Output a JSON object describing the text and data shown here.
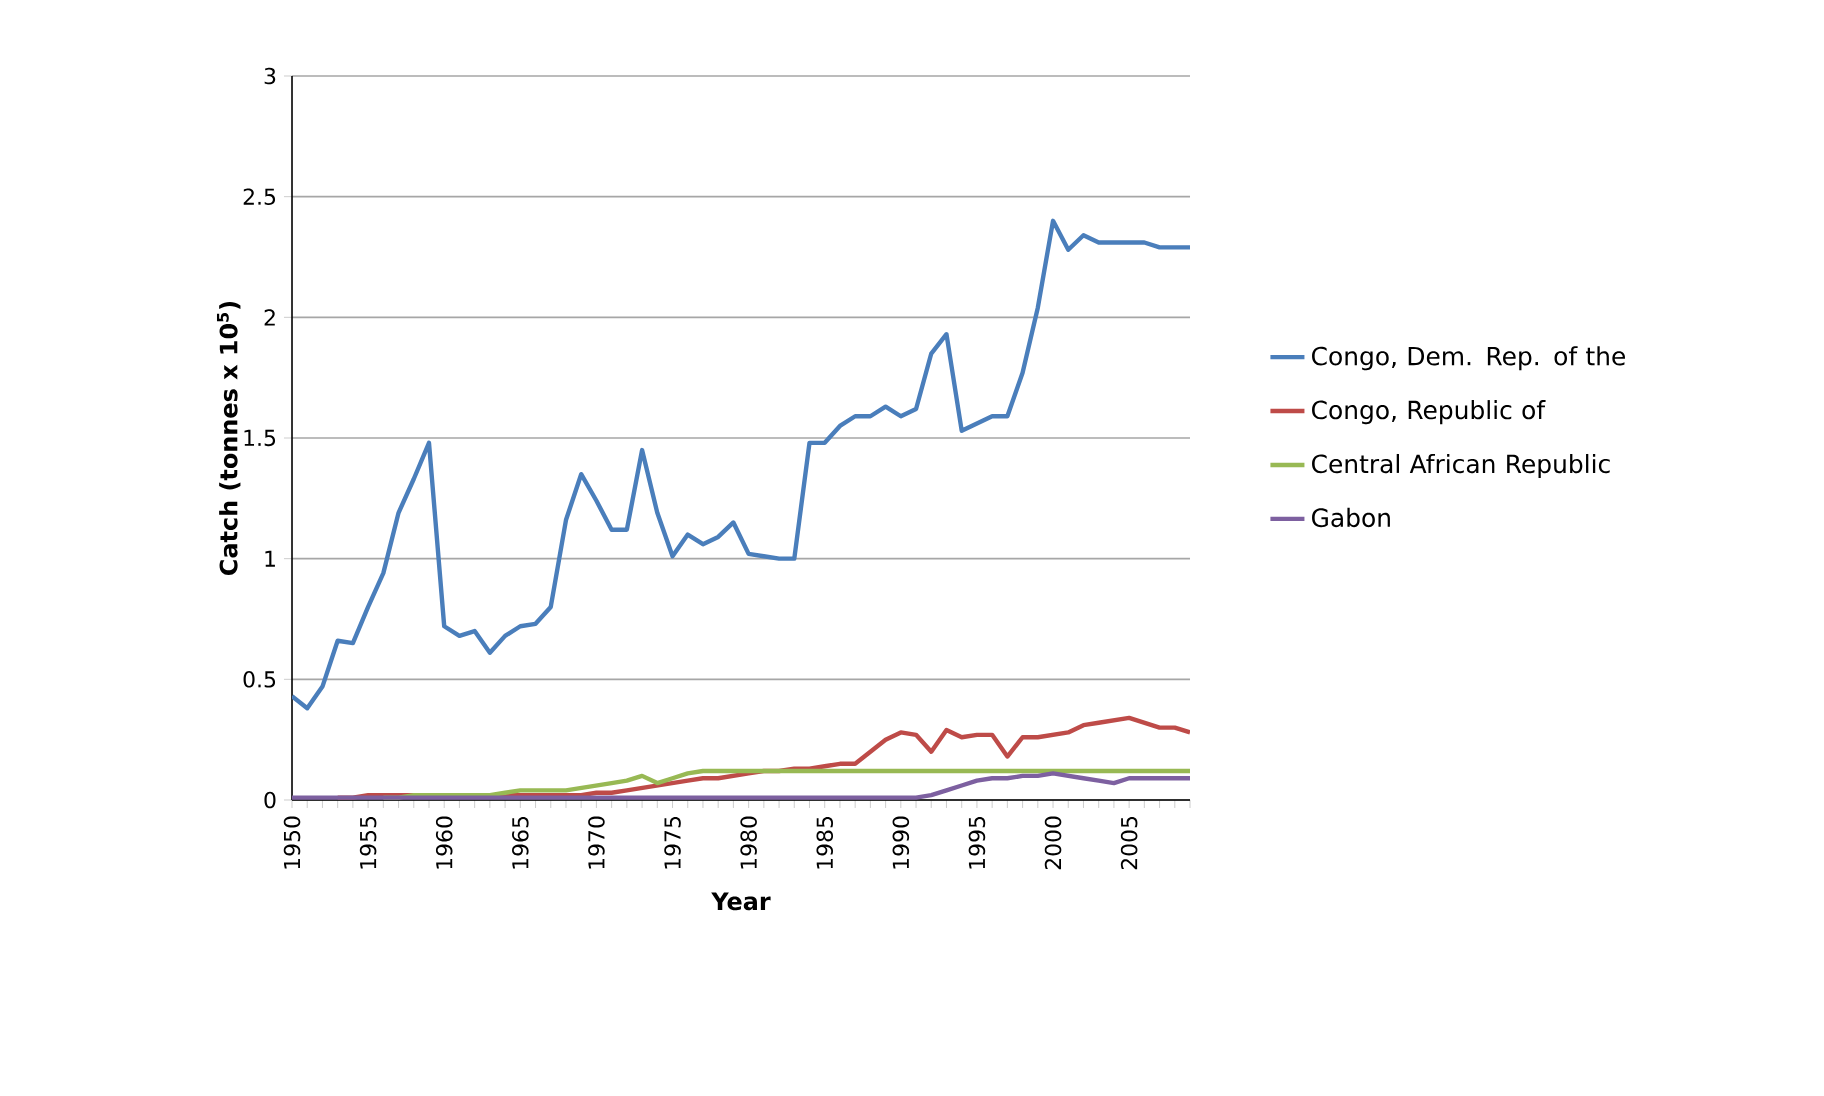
{
  "chart_data": {
    "type": "line",
    "xlabel": "Year",
    "ylabel": "Catch (tonnes x 10$^{5}$)",
    "categories": [
      "1950",
      null,
      null,
      null,
      null,
      "1955",
      null,
      null,
      null,
      null,
      "1960",
      null,
      null,
      null,
      null,
      "1965",
      null,
      null,
      null,
      null,
      "1970",
      null,
      null,
      null,
      null,
      "1975",
      null,
      null,
      null,
      null,
      "1980",
      null,
      null,
      null,
      null,
      "1985",
      null,
      null,
      null,
      null,
      "1990",
      null,
      null,
      null,
      null,
      "1995",
      null,
      null,
      null,
      null,
      "2000",
      null,
      null,
      null,
      null,
      "2005",
      null,
      null,
      null,
      null
    ],
    "series": [
      {
        "name": "Congo, Dem. Rep. of the",
        "color": "#4a7ebb",
        "values": [
          0.43,
          0.38,
          0.47,
          0.66,
          0.65,
          0.8,
          0.94,
          1.19,
          1.33,
          1.48,
          0.72,
          0.68,
          0.7,
          0.61,
          0.68,
          0.72,
          0.73,
          0.8,
          1.16,
          1.35,
          1.24,
          1.12,
          1.12,
          1.45,
          1.19,
          1.01,
          1.1,
          1.06,
          1.09,
          1.15,
          1.02,
          1.01,
          1.0,
          1.0,
          1.48,
          1.48,
          1.55,
          1.59,
          1.59,
          1.63,
          1.59,
          1.62,
          1.85,
          1.93,
          1.53,
          1.56,
          1.59,
          1.59,
          1.77,
          2.04,
          2.4,
          2.28,
          2.34,
          2.31,
          2.31,
          2.31,
          2.31,
          2.29,
          2.29,
          2.29
        ]
      },
      {
        "name": "Congo, Republic of",
        "color": "#be4b48",
        "values": [
          null,
          null,
          null,
          0.01,
          0.01,
          0.02,
          0.02,
          0.02,
          0.02,
          0.02,
          0.02,
          0.02,
          0.02,
          0.02,
          0.02,
          0.02,
          0.02,
          0.02,
          0.02,
          0.02,
          0.03,
          0.03,
          0.04,
          0.05,
          0.06,
          0.07,
          0.08,
          0.09,
          0.09,
          0.1,
          0.11,
          0.12,
          0.12,
          0.13,
          0.13,
          0.14,
          0.15,
          0.15,
          0.2,
          0.25,
          0.28,
          0.27,
          0.2,
          0.29,
          0.26,
          0.27,
          0.27,
          0.18,
          0.26,
          0.26,
          0.27,
          0.28,
          0.31,
          0.32,
          0.33,
          0.34,
          0.32,
          0.3,
          0.3,
          0.28
        ]
      },
      {
        "name": "Central African Republic",
        "color": "#98b954",
        "values": [
          null,
          null,
          null,
          null,
          null,
          null,
          0.01,
          0.01,
          0.02,
          0.02,
          0.02,
          0.02,
          0.02,
          0.02,
          0.03,
          0.04,
          0.04,
          0.04,
          0.04,
          0.05,
          0.06,
          0.07,
          0.08,
          0.1,
          0.07,
          0.09,
          0.11,
          0.12,
          0.12,
          0.12,
          0.12,
          0.12,
          0.12,
          0.12,
          0.12,
          0.12,
          0.12,
          0.12,
          0.12,
          0.12,
          0.12,
          0.12,
          0.12,
          0.12,
          0.12,
          0.12,
          0.12,
          0.12,
          0.12,
          0.12,
          0.12,
          0.12,
          0.12,
          0.12,
          0.12,
          0.12,
          0.12,
          0.12,
          0.12,
          0.12
        ]
      },
      {
        "name": "Gabon",
        "color": "#7d60a0",
        "values": [
          0.01,
          0.01,
          0.01,
          0.01,
          0.01,
          0.01,
          0.01,
          0.01,
          0.01,
          0.01,
          0.01,
          0.01,
          0.01,
          0.01,
          0.01,
          0.01,
          0.01,
          0.01,
          0.01,
          0.01,
          0.01,
          0.01,
          0.01,
          0.01,
          0.01,
          0.01,
          0.01,
          0.01,
          0.01,
          0.01,
          0.01,
          0.01,
          0.01,
          0.01,
          0.01,
          0.01,
          0.01,
          0.01,
          0.01,
          0.01,
          0.01,
          0.01,
          0.02,
          0.04,
          0.06,
          0.08,
          0.09,
          0.09,
          0.1,
          0.1,
          0.11,
          0.1,
          0.09,
          0.08,
          0.07,
          0.09,
          0.09,
          0.09,
          0.09,
          0.09
        ]
      }
    ],
    "ylim": [
      0,
      3
    ],
    "yticks": [
      0,
      0.5,
      1,
      1.5,
      2,
      2.5,
      3
    ],
    "grid": "y",
    "legend": "right"
  }
}
